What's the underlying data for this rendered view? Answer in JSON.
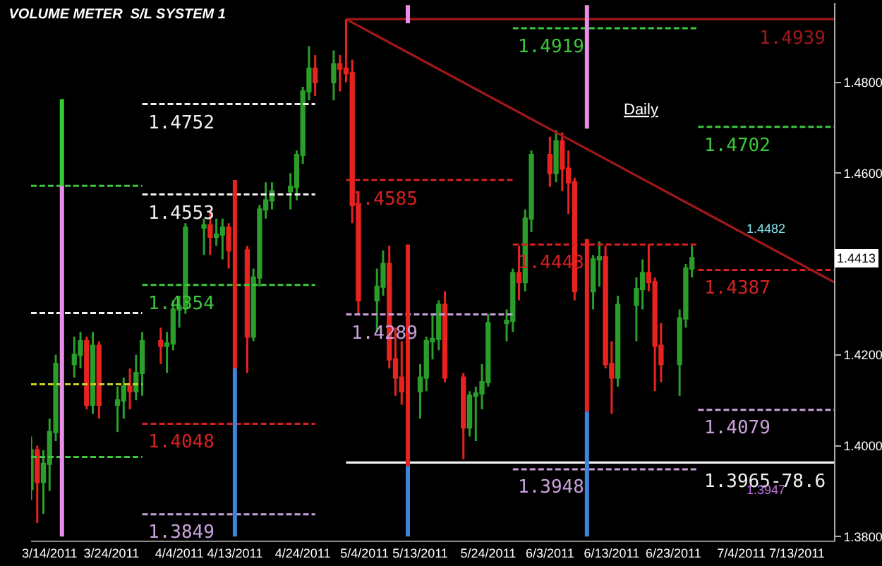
{
  "chart_data": {
    "type": "candlestick",
    "title": "VOLUME METER  S/L SYSTEM 1",
    "x": [
      "2011-03-11",
      "2011-03-12",
      "2011-03-13",
      "2011-03-14",
      "2011-03-15",
      "2011-03-18",
      "2011-03-19",
      "2011-03-20",
      "2011-03-21",
      "2011-03-22",
      "2011-03-25",
      "2011-03-26",
      "2011-03-27",
      "2011-03-28",
      "2011-03-29",
      "2011-04-01",
      "2011-04-02",
      "2011-04-03",
      "2011-04-04",
      "2011-04-05",
      "2011-04-08",
      "2011-04-09",
      "2011-04-10",
      "2011-04-11",
      "2011-04-12",
      "2011-04-15",
      "2011-04-16",
      "2011-04-17",
      "2011-04-18",
      "2011-04-19",
      "2011-04-22",
      "2011-04-23",
      "2011-04-24",
      "2011-04-25",
      "2011-04-26",
      "2011-04-29",
      "2011-04-30",
      "2011-05-01",
      "2011-05-02",
      "2011-05-03",
      "2011-05-06",
      "2011-05-07",
      "2011-05-08",
      "2011-05-09",
      "2011-05-10",
      "2011-05-13",
      "2011-05-14",
      "2011-05-15",
      "2011-05-16",
      "2011-05-17",
      "2011-05-20",
      "2011-05-21",
      "2011-05-22",
      "2011-05-23",
      "2011-05-24",
      "2011-05-27",
      "2011-05-28",
      "2011-05-29",
      "2011-05-30",
      "2011-05-31",
      "2011-06-03",
      "2011-06-04",
      "2011-06-05",
      "2011-06-06",
      "2011-06-07",
      "2011-06-10",
      "2011-06-11",
      "2011-06-12",
      "2011-06-13",
      "2011-06-14",
      "2011-06-17",
      "2011-06-18",
      "2011-06-19",
      "2011-06-20",
      "2011-06-21",
      "2011-06-24",
      "2011-06-25",
      "2011-06-26"
    ],
    "ohlc": [
      [
        1.3905,
        1.402,
        1.388,
        1.399
      ],
      [
        1.399,
        1.4,
        1.383,
        1.392
      ],
      [
        1.392,
        1.399,
        1.385,
        1.396
      ],
      [
        1.396,
        1.406,
        1.39,
        1.403
      ],
      [
        1.403,
        1.42,
        1.401,
        1.418
      ],
      [
        1.418,
        1.424,
        1.415,
        1.42
      ],
      [
        1.42,
        1.425,
        1.417,
        1.423
      ],
      [
        1.423,
        1.424,
        1.408,
        1.409
      ],
      [
        1.409,
        1.425,
        1.407,
        1.422
      ],
      [
        1.422,
        1.423,
        1.406,
        1.409
      ],
      [
        1.409,
        1.413,
        1.403,
        1.41
      ],
      [
        1.41,
        1.415,
        1.406,
        1.413
      ],
      [
        1.413,
        1.417,
        1.408,
        1.412
      ],
      [
        1.412,
        1.42,
        1.41,
        1.416
      ],
      [
        1.416,
        1.425,
        1.411,
        1.423
      ],
      [
        1.423,
        1.426,
        1.418,
        1.422
      ],
      [
        1.422,
        1.425,
        1.416,
        1.4225
      ],
      [
        1.4225,
        1.432,
        1.421,
        1.43
      ],
      [
        1.43,
        1.433,
        1.426,
        1.4305
      ],
      [
        1.4305,
        1.449,
        1.429,
        1.448
      ],
      [
        1.448,
        1.45,
        1.442,
        1.4485
      ],
      [
        1.4485,
        1.452,
        1.442,
        1.446
      ],
      [
        1.446,
        1.45,
        1.444,
        1.4465
      ],
      [
        1.4465,
        1.45,
        1.441,
        1.448
      ],
      [
        1.448,
        1.449,
        1.439,
        1.443
      ],
      [
        1.443,
        1.444,
        1.416,
        1.424
      ],
      [
        1.424,
        1.439,
        1.423,
        1.437
      ],
      [
        1.437,
        1.453,
        1.435,
        1.452
      ],
      [
        1.452,
        1.458,
        1.45,
        1.454
      ],
      [
        1.454,
        1.458,
        1.452,
        1.456
      ],
      [
        1.456,
        1.46,
        1.452,
        1.457
      ],
      [
        1.457,
        1.465,
        1.454,
        1.464
      ],
      [
        1.464,
        1.479,
        1.462,
        1.478
      ],
      [
        1.478,
        1.488,
        1.476,
        1.483
      ],
      [
        1.483,
        1.486,
        1.477,
        1.48
      ],
      [
        1.48,
        1.487,
        1.476,
        1.484
      ],
      [
        1.484,
        1.486,
        1.478,
        1.483
      ],
      [
        1.483,
        1.4939,
        1.48,
        1.482
      ],
      [
        1.482,
        1.485,
        1.449,
        1.453
      ],
      [
        1.453,
        1.456,
        1.429,
        1.432
      ],
      [
        1.432,
        1.439,
        1.425,
        1.435
      ],
      [
        1.435,
        1.443,
        1.433,
        1.44
      ],
      [
        1.44,
        1.444,
        1.417,
        1.419
      ],
      [
        1.419,
        1.426,
        1.411,
        1.415
      ],
      [
        1.415,
        1.423,
        1.409,
        1.412
      ],
      [
        1.412,
        1.418,
        1.406,
        1.415
      ],
      [
        1.415,
        1.424,
        1.412,
        1.423
      ],
      [
        1.423,
        1.429,
        1.419,
        1.4235
      ],
      [
        1.4235,
        1.432,
        1.421,
        1.431
      ],
      [
        1.431,
        1.434,
        1.414,
        1.415
      ],
      [
        1.415,
        1.416,
        1.397,
        1.404
      ],
      [
        1.404,
        1.412,
        1.402,
        1.411
      ],
      [
        1.411,
        1.413,
        1.401,
        1.4115
      ],
      [
        1.4115,
        1.418,
        1.408,
        1.414
      ],
      [
        1.414,
        1.429,
        1.413,
        1.427
      ],
      [
        1.427,
        1.43,
        1.423,
        1.4275
      ],
      [
        1.4275,
        1.439,
        1.425,
        1.438
      ],
      [
        1.438,
        1.444,
        1.432,
        1.436
      ],
      [
        1.436,
        1.452,
        1.434,
        1.45
      ],
      [
        1.45,
        1.465,
        1.447,
        1.464
      ],
      [
        1.464,
        1.468,
        1.457,
        1.46
      ],
      [
        1.46,
        1.4695,
        1.458,
        1.467
      ],
      [
        1.467,
        1.469,
        1.456,
        1.461
      ],
      [
        1.461,
        1.465,
        1.451,
        1.458
      ],
      [
        1.458,
        1.459,
        1.432,
        1.434
      ],
      [
        1.434,
        1.442,
        1.43,
        1.441
      ],
      [
        1.441,
        1.445,
        1.435,
        1.4415
      ],
      [
        1.4415,
        1.444,
        1.417,
        1.418
      ],
      [
        1.418,
        1.423,
        1.407,
        1.415
      ],
      [
        1.415,
        1.433,
        1.413,
        1.431
      ],
      [
        1.431,
        1.437,
        1.423,
        1.4345
      ],
      [
        1.4345,
        1.441,
        1.43,
        1.438
      ],
      [
        1.438,
        1.4443,
        1.434,
        1.436
      ],
      [
        1.436,
        1.437,
        1.412,
        1.422
      ],
      [
        1.422,
        1.427,
        1.414,
        1.418
      ],
      [
        1.418,
        1.43,
        1.411,
        1.428
      ],
      [
        1.428,
        1.44,
        1.426,
        1.439
      ],
      [
        1.439,
        1.444,
        1.437,
        1.4413
      ]
    ],
    "colors": [
      "#2a9d2a",
      "#e8231f",
      "#2a9d2a",
      "#2a9d2a",
      "#2a9d2a",
      "#2a9d2a",
      "#2a9d2a",
      "#e8231f",
      "#2a9d2a",
      "#e8231f",
      "#2a9d2a",
      "#2a9d2a",
      "#e8231f",
      "#2a9d2a",
      "#2a9d2a",
      "#e8231f",
      "#2a9d2a",
      "#2a9d2a",
      "#2a9d2a",
      "#2a9d2a",
      "#2a9d2a",
      "#e8231f",
      "#2a9d2a",
      "#2a9d2a",
      "#e8231f",
      "#e8231f",
      "#2a9d2a",
      "#2a9d2a",
      "#2a9d2a",
      "#2a9d2a",
      "#2a9d2a",
      "#2a9d2a",
      "#2a9d2a",
      "#2a9d2a",
      "#e8231f",
      "#2a9d2a",
      "#e8231f",
      "#e8231f",
      "#e8231f",
      "#e8231f",
      "#2a9d2a",
      "#2a9d2a",
      "#e8231f",
      "#e8231f",
      "#e8231f",
      "#2a9d2a",
      "#2a9d2a",
      "#2a9d2a",
      "#2a9d2a",
      "#e8231f",
      "#e8231f",
      "#2a9d2a",
      "#2a9d2a",
      "#2a9d2a",
      "#2a9d2a",
      "#2a9d2a",
      "#2a9d2a",
      "#e8231f",
      "#2a9d2a",
      "#2a9d2a",
      "#e8231f",
      "#2a9d2a",
      "#e8231f",
      "#e8231f",
      "#e8231f",
      "#2a9d2a",
      "#2a9d2a",
      "#e8231f",
      "#e8231f",
      "#2a9d2a",
      "#2a9d2a",
      "#2a9d2a",
      "#e8231f",
      "#e8231f",
      "#e8231f",
      "#2a9d2a",
      "#2a9d2a",
      "#2a9d2a"
    ],
    "series": [
      {
        "type": "line",
        "name": "1.4752",
        "color": "#f0f0f0",
        "line_style": "dashed",
        "x": [
          "2011-03-29",
          "2011-04-26"
        ],
        "values": [
          1.4752,
          1.4752
        ]
      },
      {
        "type": "line",
        "name": "1.4553",
        "color": "#f0f0f0",
        "line_style": "dashed",
        "x": [
          "2011-03-29",
          "2011-04-26"
        ],
        "values": [
          1.4553,
          1.4553
        ]
      },
      {
        "type": "line",
        "name": "1.4354",
        "color": "#3cc83c",
        "line_style": "dashed",
        "x": [
          "2011-03-29",
          "2011-04-26"
        ],
        "values": [
          1.4354,
          1.4354
        ]
      },
      {
        "type": "line",
        "name": "1.4048",
        "color": "#d42020",
        "line_style": "dashed",
        "x": [
          "2011-03-29",
          "2011-04-26"
        ],
        "values": [
          1.4048,
          1.4048
        ]
      },
      {
        "type": "line",
        "name": "1.3849",
        "color": "#c9a0dc",
        "line_style": "dashed",
        "x": [
          "2011-03-29",
          "2011-04-26"
        ],
        "values": [
          1.3849,
          1.3849
        ]
      },
      {
        "type": "line",
        "color": "#3cc83c",
        "line_style": "dashed",
        "x": [
          "2011-03-11",
          "2011-03-29"
        ],
        "values": [
          1.4572,
          1.4572
        ]
      },
      {
        "type": "line",
        "color": "#f0f0f0",
        "line_style": "dashed",
        "x": [
          "2011-03-11",
          "2011-03-29"
        ],
        "values": [
          1.4292,
          1.4292
        ]
      },
      {
        "type": "line",
        "color": "#c8d020",
        "line_style": "dashed",
        "x": [
          "2011-03-11",
          "2011-03-29"
        ],
        "values": [
          1.4135,
          1.4135
        ]
      },
      {
        "type": "line",
        "color": "#3cc83c",
        "line_style": "dashed",
        "x": [
          "2011-03-11",
          "2011-03-29"
        ],
        "values": [
          1.3975,
          1.3975
        ]
      },
      {
        "type": "line",
        "name": "1.4585",
        "color": "#d42020",
        "line_style": "dashed",
        "x": [
          "2011-05-01",
          "2011-05-28"
        ],
        "values": [
          1.4585,
          1.4585
        ]
      },
      {
        "type": "line",
        "name": "1.4289",
        "color": "#c9a0dc",
        "line_style": "dashed",
        "x": [
          "2011-05-01",
          "2011-05-28"
        ],
        "values": [
          1.4289,
          1.4289
        ]
      },
      {
        "type": "line",
        "name": "1.4919",
        "color": "#3cc83c",
        "line_style": "dashed",
        "x": [
          "2011-05-28",
          "2011-06-27"
        ],
        "values": [
          1.4919,
          1.4919
        ]
      },
      {
        "type": "line",
        "name": "1.4443",
        "color": "#d42020",
        "line_style": "dashed",
        "x": [
          "2011-05-28",
          "2011-06-27"
        ],
        "values": [
          1.4443,
          1.4443
        ]
      },
      {
        "type": "line",
        "name": "1.3948",
        "color": "#c9a0dc",
        "line_style": "dashed",
        "x": [
          "2011-05-28",
          "2011-06-27"
        ],
        "values": [
          1.3948,
          1.3948
        ]
      },
      {
        "type": "line",
        "name": "1.4702",
        "color": "#3cc83c",
        "line_style": "dashed",
        "x": [
          "2011-06-27",
          "2011-07-19"
        ],
        "values": [
          1.4702,
          1.4702
        ]
      },
      {
        "type": "line",
        "name": "1.4387",
        "color": "#d42020",
        "line_style": "dashed",
        "x": [
          "2011-06-27",
          "2011-07-19"
        ],
        "values": [
          1.4387,
          1.4387
        ]
      },
      {
        "type": "line",
        "name": "1.4079",
        "color": "#c9a0dc",
        "line_style": "dashed",
        "x": [
          "2011-06-27",
          "2011-07-19"
        ],
        "values": [
          1.4079,
          1.4079
        ]
      },
      {
        "type": "line",
        "name": "1.4939",
        "color": "#a01818",
        "line_style": "solid",
        "x": [
          "2011-07-19",
          "2011-05-01"
        ],
        "values": [
          1.4939,
          1.4939
        ]
      },
      {
        "type": "line",
        "name": "1.3965-78.6",
        "color": "#f0f0f0",
        "line_style": "solid",
        "x": [
          "2011-07-19",
          "2011-05-01"
        ],
        "values": [
          1.3963,
          1.3963
        ]
      },
      {
        "type": "line",
        "color": "#a01818",
        "line_style": "solid",
        "x": [
          "2011-05-01",
          "2011-07-19"
        ],
        "values": [
          1.4939,
          1.436
        ]
      },
      {
        "type": "line",
        "color": "#33cc33",
        "line_style": "solid",
        "x": [
          "2011-03-16",
          "2011-03-16"
        ],
        "values": [
          1.4763,
          1.4572
        ]
      },
      {
        "type": "line",
        "color": "#e88ee8",
        "line_style": "solid",
        "x": [
          "2011-03-16",
          "2011-03-16"
        ],
        "values": [
          1.4572,
          1.38
        ]
      },
      {
        "type": "line",
        "color": "#e8231f",
        "line_style": "solid",
        "x": [
          "2011-04-13",
          "2011-04-13"
        ],
        "values": [
          1.4585,
          1.417
        ]
      },
      {
        "type": "line",
        "color": "#3d85d8",
        "line_style": "solid",
        "x": [
          "2011-04-13",
          "2011-04-13"
        ],
        "values": [
          1.417,
          1.38
        ]
      },
      {
        "type": "line",
        "color": "#e8231f",
        "line_style": "solid",
        "x": [
          "2011-05-11",
          "2011-05-11"
        ],
        "values": [
          1.4443,
          1.3955
        ]
      },
      {
        "type": "line",
        "color": "#3d85d8",
        "line_style": "solid",
        "x": [
          "2011-05-11",
          "2011-05-11"
        ],
        "values": [
          1.3955,
          1.38
        ]
      },
      {
        "type": "line",
        "color": "#e88ee8",
        "line_style": "solid",
        "x": [
          "2011-05-11",
          "2011-05-11"
        ],
        "values": [
          1.497,
          1.493
        ]
      },
      {
        "type": "line",
        "color": "#e8231f",
        "line_style": "solid",
        "x": [
          "2011-06-09",
          "2011-06-09"
        ],
        "values": [
          1.4455,
          1.4075
        ]
      },
      {
        "type": "line",
        "color": "#3d85d8",
        "line_style": "solid",
        "x": [
          "2011-06-09",
          "2011-06-09"
        ],
        "values": [
          1.4075,
          1.38
        ]
      },
      {
        "type": "line",
        "color": "#e88ee8",
        "line_style": "solid",
        "x": [
          "2011-06-09",
          "2011-06-09"
        ],
        "values": [
          1.497,
          1.4698
        ]
      }
    ],
    "annotations": [
      "Daily",
      "1.4482",
      "1.3947",
      {
        "text": "1.4413",
        "y": 1.4413
      }
    ],
    "xlim": [
      "2011-03-11",
      "2011-07-19"
    ],
    "xticks": [
      {
        "value": "2011-03-14",
        "label": "3/14/2011"
      },
      {
        "value": "2011-03-24",
        "label": "3/24/2011"
      },
      {
        "value": "2011-04-04",
        "label": "4/4/2011"
      },
      {
        "value": "2011-04-13",
        "label": "4/13/2011"
      },
      {
        "value": "2011-04-24",
        "label": "4/24/2011"
      },
      {
        "value": "2011-05-04",
        "label": "5/4/2011"
      },
      {
        "value": "2011-05-13",
        "label": "5/13/2011"
      },
      {
        "value": "2011-05-24",
        "label": "5/24/2011"
      },
      {
        "value": "2011-06-03",
        "label": "6/3/2011"
      },
      {
        "value": "2011-06-13",
        "label": "6/13/2011"
      },
      {
        "value": "2011-06-23",
        "label": "6/23/2011"
      },
      {
        "value": "2011-07-04",
        "label": "7/4/2011"
      },
      {
        "value": "2011-07-13",
        "label": "7/13/2011"
      }
    ],
    "ylim": [
      1.3791,
      1.4975
    ],
    "yticks": [
      {
        "value": 1.38,
        "label": "1.3800"
      },
      {
        "value": 1.4,
        "label": "1.4000"
      },
      {
        "value": 1.42,
        "label": "1.4200"
      },
      {
        "value": 1.46,
        "label": "1.4600"
      },
      {
        "value": 1.48,
        "label": "1.4800"
      }
    ],
    "grid": false,
    "legend": false
  }
}
